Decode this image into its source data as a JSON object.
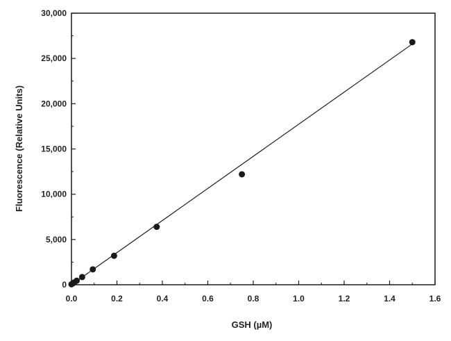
{
  "chart_data": {
    "type": "scatter",
    "title": "",
    "xlabel": "GSH (µM)",
    "ylabel": "Fluorescence (Relative Units)",
    "xlim": [
      0.0,
      1.6
    ],
    "ylim": [
      0,
      30000
    ],
    "x_ticks": [
      0.0,
      0.2,
      0.4,
      0.6,
      0.8,
      1.0,
      1.2,
      1.4,
      1.6
    ],
    "x_tick_labels": [
      "0.0",
      "0.2",
      "0.4",
      "0.6",
      "0.8",
      "1.0",
      "1.2",
      "1.4",
      "1.6"
    ],
    "y_ticks": [
      0,
      5000,
      10000,
      15000,
      20000,
      25000,
      30000
    ],
    "y_tick_labels": [
      "0",
      "5,000",
      "10,000",
      "15,000",
      "20,000",
      "25,000",
      "30,000"
    ],
    "grid": false,
    "legend": "none",
    "series": [
      {
        "points": [
          {
            "x": 0.0,
            "y": 50
          },
          {
            "x": 0.006,
            "y": 150
          },
          {
            "x": 0.012,
            "y": 250
          },
          {
            "x": 0.023,
            "y": 450
          },
          {
            "x": 0.047,
            "y": 850
          },
          {
            "x": 0.094,
            "y": 1700
          },
          {
            "x": 0.1875,
            "y": 3200
          },
          {
            "x": 0.375,
            "y": 6400
          },
          {
            "x": 0.75,
            "y": 12200
          },
          {
            "x": 1.5,
            "y": 26800
          }
        ],
        "color": "#1a1a1a"
      }
    ],
    "fit_line": {
      "x": [
        0.0,
        1.5
      ],
      "y": [
        0,
        26600
      ],
      "color": "#1a1a1a"
    }
  }
}
